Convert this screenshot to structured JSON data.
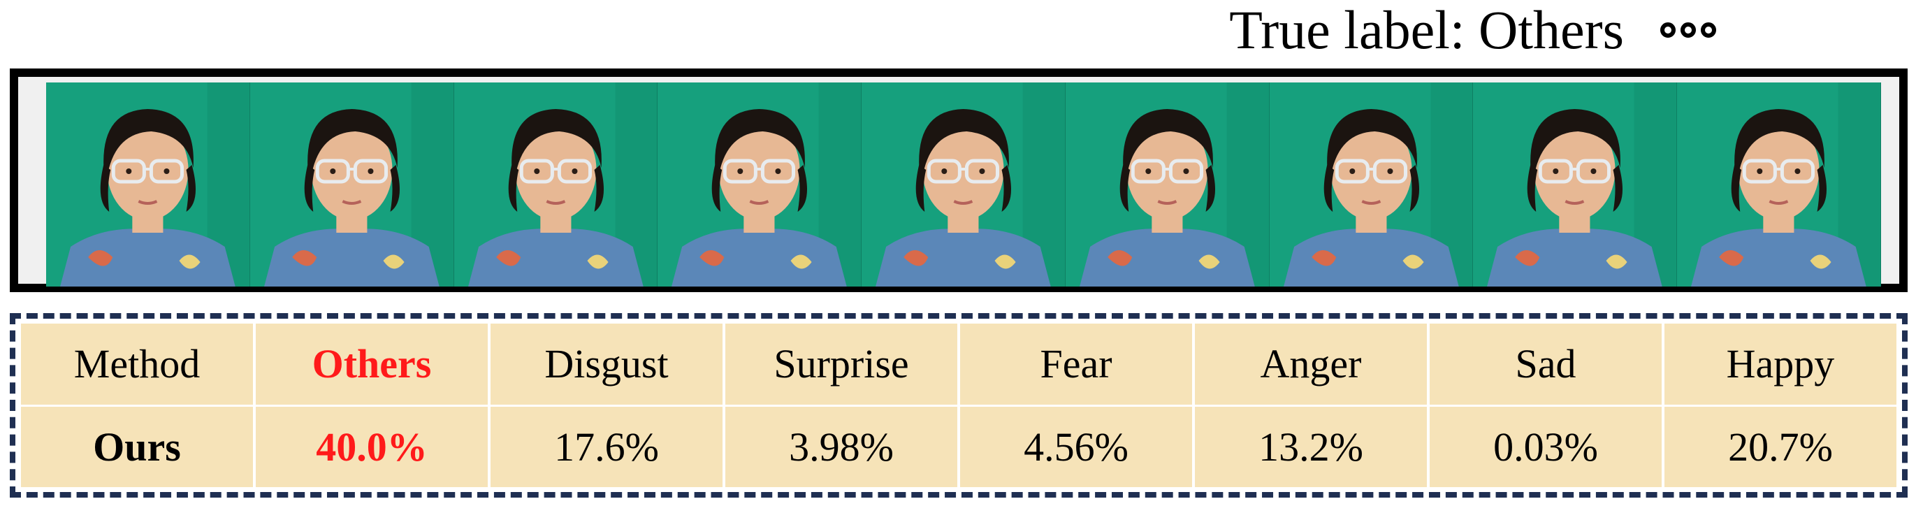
{
  "title": "True label: Others",
  "frames": {
    "count": 9,
    "colors": {
      "background": "#16a07d",
      "shirt": "#5b87b8",
      "skin": "#e7b894",
      "hair": "#1b1410"
    }
  },
  "table": {
    "highlight_color": "#ff1a1a",
    "header": [
      "Method",
      "Others",
      "Disgust",
      "Surprise",
      "Fear",
      "Anger",
      "Sad",
      "Happy"
    ],
    "row": [
      "Ours",
      "40.0%",
      "17.6%",
      "3.98%",
      "4.56%",
      "13.2%",
      "0.03%",
      "20.7%"
    ]
  }
}
